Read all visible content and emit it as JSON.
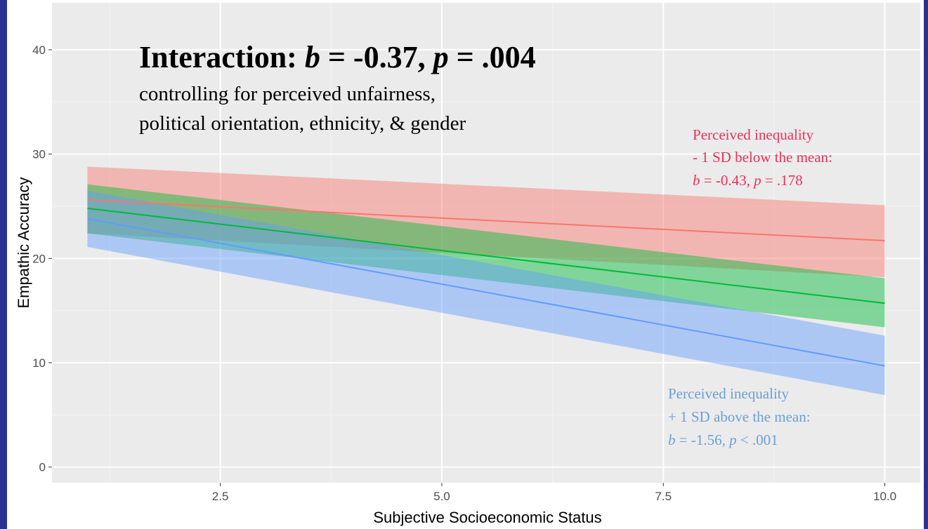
{
  "colors": {
    "frame": "#2a3290",
    "panel": "#ebebeb",
    "grid_major": "#ffffff",
    "grid_minor": "#f3f3f3",
    "low": "#f8766d",
    "mid": "#00ba38",
    "high": "#619cff",
    "low_text": "#e8325a",
    "high_text": "#6a9fd8"
  },
  "annotations": {
    "main_prefix": "Interaction: ",
    "main_b": "b",
    "main_b_rest": " = -0.37, ",
    "main_p": "p",
    "main_p_rest": " = .004",
    "sub_line1": "controlling for perceived unfairness,",
    "sub_line2": "political orientation, ethnicity, & gender",
    "low_line1": "Perceived inequality",
    "low_line2": "- 1 SD below the mean:",
    "low_b": "b",
    "low_b_rest": " = -0.43, ",
    "low_p": "p",
    "low_p_rest": " = .178",
    "high_line1": "Perceived inequality",
    "high_line2": "+ 1 SD above the mean:",
    "high_b": "b",
    "high_b_rest": " = -1.56, ",
    "high_p": "p",
    "high_p_rest": " < .001"
  },
  "chart_data": {
    "type": "line",
    "xlabel": "Subjective Socioeconomic Status",
    "ylabel": "Empathic Accuracy",
    "xlim": [
      0.6,
      10.4
    ],
    "ylim": [
      -1.5,
      44.5
    ],
    "x_ticks": [
      2.5,
      5.0,
      7.5,
      10.0
    ],
    "x_tick_labels": [
      "2.5",
      "5.0",
      "7.5",
      "10.0"
    ],
    "y_ticks": [
      0,
      10,
      20,
      30,
      40
    ],
    "y_tick_labels": [
      "0",
      "10",
      "20",
      "30",
      "40"
    ],
    "grid": true,
    "series": [
      {
        "key": "low",
        "x": [
          1,
          10
        ],
        "y": [
          25.6,
          21.7
        ],
        "lower": [
          22.4,
          18.2
        ],
        "upper": [
          28.8,
          25.1
        ]
      },
      {
        "key": "mid",
        "x": [
          1,
          10
        ],
        "y": [
          24.8,
          15.7
        ],
        "lower": [
          22.4,
          13.4
        ],
        "upper": [
          27.1,
          18.1
        ]
      },
      {
        "key": "high",
        "x": [
          1,
          10
        ],
        "y": [
          23.8,
          9.7
        ],
        "lower": [
          21.1,
          6.9
        ],
        "upper": [
          26.5,
          12.6
        ]
      }
    ]
  }
}
